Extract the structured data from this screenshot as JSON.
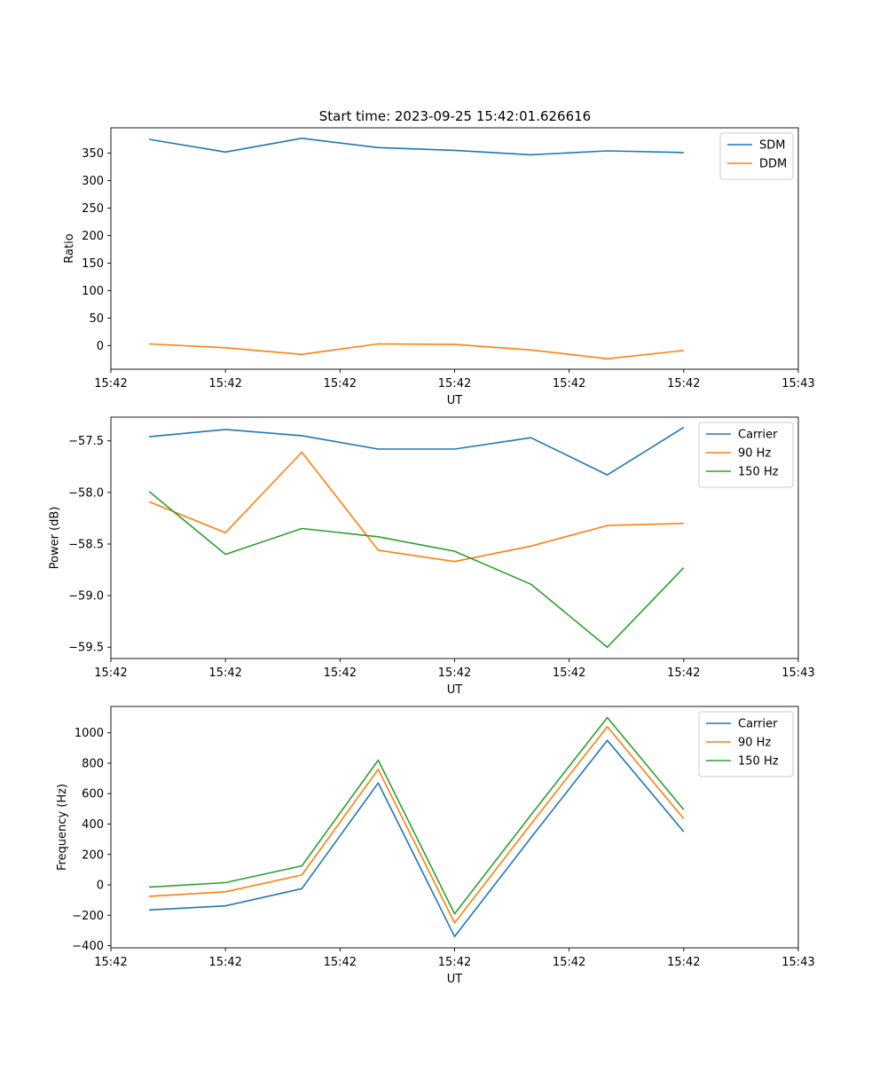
{
  "figure": {
    "title": "Start time: 2023-09-25 15:42:01.626616"
  },
  "chart_data": [
    {
      "type": "line",
      "xlabel": "UT",
      "ylabel": "Ratio",
      "x": [
        0,
        1,
        2,
        3,
        4,
        5,
        6,
        7
      ],
      "xlim": [
        -0.5,
        8.5
      ],
      "xtick_positions": [
        -0.5,
        1,
        2.5,
        4,
        5.5,
        7,
        8.5
      ],
      "xtick_labels": [
        "15:42",
        "15:42",
        "15:42",
        "15:42",
        "15:42",
        "15:42",
        "15:43"
      ],
      "ylim": [
        -43,
        396
      ],
      "yticks": [
        0,
        50,
        100,
        150,
        200,
        250,
        300,
        350
      ],
      "yticklabels": [
        "0",
        "50",
        "100",
        "150",
        "200",
        "250",
        "300",
        "350"
      ],
      "legend_position": "top-right",
      "series": [
        {
          "name": "SDM",
          "color": "#1f77b4",
          "values": [
            375,
            352,
            377,
            360,
            355,
            347,
            354,
            351
          ]
        },
        {
          "name": "DDM",
          "color": "#ff7f0e",
          "values": [
            3,
            -4,
            -16,
            3,
            2,
            -8,
            -24,
            -9
          ]
        }
      ]
    },
    {
      "type": "line",
      "xlabel": "UT",
      "ylabel": "Power (dB)",
      "x": [
        0,
        1,
        2,
        3,
        4,
        5,
        6,
        7
      ],
      "xlim": [
        -0.5,
        8.5
      ],
      "xtick_positions": [
        -0.5,
        1,
        2.5,
        4,
        5.5,
        7,
        8.5
      ],
      "xtick_labels": [
        "15:42",
        "15:42",
        "15:42",
        "15:42",
        "15:42",
        "15:42",
        "15:43"
      ],
      "ylim": [
        -59.61,
        -57.27
      ],
      "yticks": [
        -59.5,
        -59.0,
        -58.5,
        -58.0,
        -57.5
      ],
      "yticklabels": [
        "−59.5",
        "−59.0",
        "−58.5",
        "−58.0",
        "−57.5"
      ],
      "legend_position": "top-right",
      "series": [
        {
          "name": "Carrier",
          "color": "#1f77b4",
          "values": [
            -57.46,
            -57.39,
            -57.45,
            -57.58,
            -57.58,
            -57.47,
            -57.83,
            -57.37
          ]
        },
        {
          "name": "90 Hz",
          "color": "#ff7f0e",
          "values": [
            -58.09,
            -58.39,
            -57.61,
            -58.56,
            -58.67,
            -58.52,
            -58.32,
            -58.3
          ]
        },
        {
          "name": "150 Hz",
          "color": "#2ca02c",
          "values": [
            -57.99,
            -58.6,
            -58.35,
            -58.43,
            -58.57,
            -58.89,
            -59.5,
            -58.73
          ]
        }
      ]
    },
    {
      "type": "line",
      "xlabel": "UT",
      "ylabel": "Frequency (Hz)",
      "x": [
        0,
        1,
        2,
        3,
        4,
        5,
        6,
        7
      ],
      "xlim": [
        -0.5,
        8.5
      ],
      "xtick_positions": [
        -0.5,
        1,
        2.5,
        4,
        5.5,
        7,
        8.5
      ],
      "xtick_labels": [
        "15:42",
        "15:42",
        "15:42",
        "15:42",
        "15:42",
        "15:42",
        "15:43"
      ],
      "ylim": [
        -414,
        1173
      ],
      "yticks": [
        -400,
        -200,
        0,
        200,
        400,
        600,
        800,
        1000
      ],
      "yticklabels": [
        "−400",
        "−200",
        "0",
        "200",
        "400",
        "600",
        "800",
        "1000"
      ],
      "legend_position": "top-right",
      "series": [
        {
          "name": "Carrier",
          "color": "#1f77b4",
          "values": [
            -165,
            -138,
            -25,
            670,
            -340,
            310,
            950,
            350
          ]
        },
        {
          "name": "90 Hz",
          "color": "#ff7f0e",
          "values": [
            -75,
            -45,
            65,
            760,
            -250,
            400,
            1040,
            435
          ]
        },
        {
          "name": "150 Hz",
          "color": "#2ca02c",
          "values": [
            -15,
            15,
            125,
            820,
            -190,
            460,
            1100,
            495
          ]
        }
      ]
    }
  ]
}
